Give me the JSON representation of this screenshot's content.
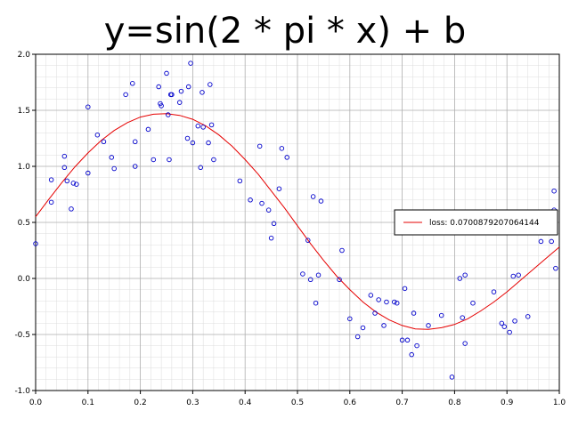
{
  "chart_data": {
    "type": "scatter",
    "title": "y=sin(2 * pi * x) + b",
    "xlim": [
      0.0,
      1.0
    ],
    "ylim": [
      -1.0,
      2.0
    ],
    "x_ticks": [
      0.0,
      0.1,
      0.2,
      0.3,
      0.4,
      0.5,
      0.6,
      0.7,
      0.8,
      0.9,
      1.0
    ],
    "x_tick_labels": [
      "0.0",
      "0.1",
      "0.2",
      "0.3",
      "0.4",
      "0.5",
      "0.6",
      "0.7",
      "0.8",
      "0.9",
      "1.0"
    ],
    "y_ticks": [
      -1.0,
      -0.5,
      0.0,
      0.5,
      1.0,
      1.5,
      2.0
    ],
    "y_tick_labels": [
      "-1.0",
      "-0.5",
      "0.0",
      "0.5",
      "1.0",
      "1.5",
      "2.0"
    ],
    "grid": true,
    "minor_grid": true,
    "legend_position": "right",
    "colors": {
      "points": "#0000cc",
      "line": "#e60000",
      "major_grid": "#b0b0b0",
      "minor_grid": "#dcdcdc"
    },
    "series": [
      {
        "type": "scatter",
        "x": [
          0.0,
          0.03,
          0.03,
          0.055,
          0.055,
          0.06,
          0.068,
          0.072,
          0.078,
          0.1,
          0.1,
          0.118,
          0.13,
          0.145,
          0.15,
          0.172,
          0.185,
          0.19,
          0.19,
          0.215,
          0.225,
          0.235,
          0.238,
          0.24,
          0.25,
          0.253,
          0.255,
          0.258,
          0.26,
          0.275,
          0.278,
          0.29,
          0.292,
          0.296,
          0.3,
          0.31,
          0.315,
          0.318,
          0.32,
          0.33,
          0.333,
          0.336,
          0.34,
          0.39,
          0.41,
          0.428,
          0.432,
          0.445,
          0.45,
          0.455,
          0.465,
          0.47,
          0.48,
          0.51,
          0.52,
          0.525,
          0.53,
          0.535,
          0.54,
          0.545,
          0.58,
          0.585,
          0.6,
          0.615,
          0.625,
          0.64,
          0.648,
          0.655,
          0.665,
          0.67,
          0.685,
          0.69,
          0.7,
          0.705,
          0.71,
          0.718,
          0.722,
          0.728,
          0.75,
          0.775,
          0.795,
          0.81,
          0.815,
          0.82,
          0.82,
          0.835,
          0.875,
          0.89,
          0.895,
          0.905,
          0.912,
          0.915,
          0.922,
          0.94,
          0.96,
          0.965,
          0.985,
          0.99,
          0.99,
          0.993
        ],
        "y": [
          0.31,
          0.68,
          0.88,
          1.09,
          0.99,
          0.87,
          0.62,
          0.85,
          0.84,
          1.53,
          0.94,
          1.28,
          1.22,
          1.08,
          0.98,
          1.64,
          1.74,
          1.22,
          1.0,
          1.33,
          1.06,
          1.71,
          1.56,
          1.54,
          1.83,
          1.46,
          1.06,
          1.64,
          1.64,
          1.57,
          1.67,
          1.25,
          1.71,
          1.92,
          1.21,
          1.36,
          0.99,
          1.66,
          1.35,
          1.21,
          1.73,
          1.37,
          1.06,
          0.87,
          0.7,
          1.18,
          0.67,
          0.61,
          0.36,
          0.49,
          0.8,
          1.16,
          1.08,
          0.04,
          0.34,
          -0.01,
          0.73,
          -0.22,
          0.03,
          0.69,
          -0.01,
          0.25,
          -0.36,
          -0.52,
          -0.44,
          -0.15,
          -0.31,
          -0.19,
          -0.42,
          -0.21,
          -0.21,
          -0.22,
          -0.55,
          -0.09,
          -0.55,
          -0.68,
          -0.31,
          -0.6,
          -0.42,
          -0.33,
          -0.88,
          0.0,
          -0.35,
          0.03,
          -0.58,
          -0.22,
          -0.12,
          -0.4,
          -0.43,
          -0.48,
          0.02,
          -0.38,
          0.03,
          -0.34,
          0.43,
          0.33,
          0.33,
          0.61,
          0.78,
          0.09
        ]
      },
      {
        "type": "line",
        "name": "loss: 0.0700879207064144",
        "x": [
          0.0,
          0.025,
          0.05,
          0.075,
          0.1,
          0.125,
          0.15,
          0.175,
          0.2,
          0.225,
          0.25,
          0.275,
          0.3,
          0.325,
          0.35,
          0.375,
          0.4,
          0.425,
          0.45,
          0.475,
          0.5,
          0.525,
          0.55,
          0.575,
          0.6,
          0.625,
          0.65,
          0.675,
          0.7,
          0.725,
          0.75,
          0.775,
          0.8,
          0.825,
          0.85,
          0.875,
          0.9,
          0.925,
          0.95,
          0.975,
          1.0
        ],
        "y": [
          0.55,
          0.705,
          0.855,
          0.995,
          1.12,
          1.23,
          1.32,
          1.39,
          1.44,
          1.465,
          1.47,
          1.455,
          1.42,
          1.36,
          1.28,
          1.18,
          1.06,
          0.93,
          0.78,
          0.63,
          0.47,
          0.31,
          0.16,
          0.02,
          -0.1,
          -0.21,
          -0.3,
          -0.37,
          -0.42,
          -0.45,
          -0.455,
          -0.44,
          -0.41,
          -0.36,
          -0.29,
          -0.21,
          -0.12,
          -0.02,
          0.08,
          0.18,
          0.28
        ]
      }
    ]
  }
}
